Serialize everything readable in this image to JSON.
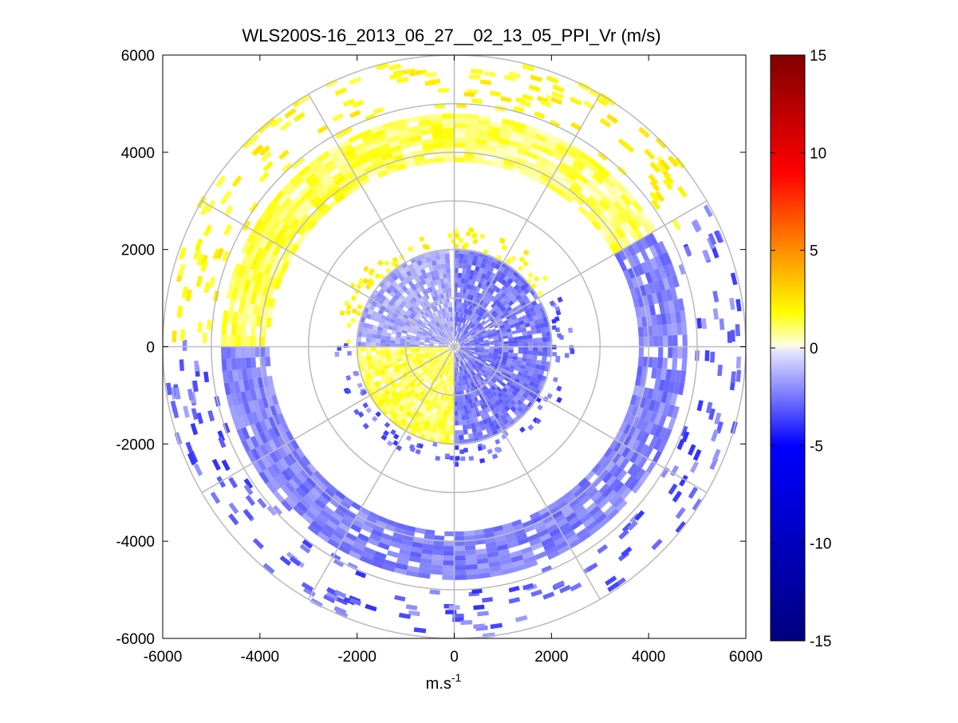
{
  "chart_data": {
    "type": "heatmap",
    "plot_kind": "polar PPI radial velocity scan",
    "title": "WLS200S-16_2013_06_27__02_13_05_PPI_Vr (m/s)",
    "xlabel": "m.s",
    "xlabel_superscript": "-1",
    "ylabel": "",
    "xlim": [
      -6000,
      6000
    ],
    "ylim": [
      -6000,
      6000
    ],
    "x_ticks": [
      "-6000",
      "-4000",
      "-2000",
      "0",
      "2000",
      "4000",
      "6000"
    ],
    "y_ticks": [
      "6000",
      "4000",
      "2000",
      "0",
      "-2000",
      "-4000",
      "-6000"
    ],
    "polar_grid_radii_m": [
      1000,
      2000,
      3000,
      4000,
      5000,
      6000
    ],
    "polar_grid_angles_deg": [
      0,
      30,
      60,
      90,
      120,
      150,
      180,
      210,
      240,
      270,
      300,
      330
    ],
    "colorbar": {
      "range": [
        -15,
        15
      ],
      "ticks": [
        "15",
        "10",
        "5",
        "0",
        "-5",
        "-10",
        "-15"
      ],
      "colormap": [
        "#00007f",
        "#0000ff",
        "#e6e6ff",
        "#ffffe0",
        "#ffff00",
        "#ff0000",
        "#800000"
      ]
    },
    "bands": [
      {
        "r_range_m": [
          0,
          2000
        ],
        "az_range_deg": [
          0,
          180
        ],
        "vr_mps": -2.5,
        "description": "inner disc east sector, approaching"
      },
      {
        "r_range_m": [
          0,
          2000
        ],
        "az_range_deg": [
          180,
          270
        ],
        "vr_mps": 1.2,
        "description": "inner disc southwest sector, receding"
      },
      {
        "r_range_m": [
          0,
          2000
        ],
        "az_range_deg": [
          270,
          355
        ],
        "vr_mps": -1.5,
        "description": "inner disc northwest sector, approaching"
      },
      {
        "r_range_m": [
          3800,
          4800
        ],
        "az_range_deg": [
          270,
          360
        ],
        "vr_mps": 1.2,
        "description": "outer arc north-west, receding"
      },
      {
        "r_range_m": [
          3800,
          4800
        ],
        "az_range_deg": [
          0,
          60
        ],
        "vr_mps": 1.0,
        "description": "outer arc north-east, receding"
      },
      {
        "r_range_m": [
          3800,
          4800
        ],
        "az_range_deg": [
          60,
          270
        ],
        "vr_mps": -2.2,
        "description": "outer arc east-south-west, approaching"
      }
    ]
  }
}
